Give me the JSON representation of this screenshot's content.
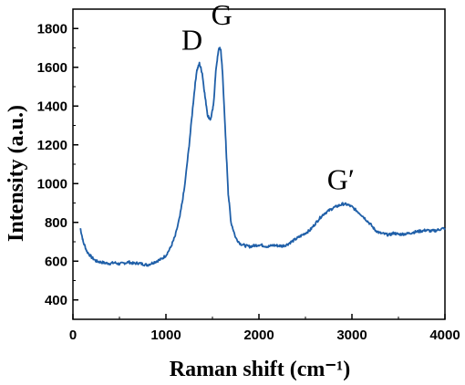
{
  "chart_data": {
    "type": "line",
    "title": "",
    "xlabel": "Raman shift (cm⁻¹)",
    "ylabel": "Intensity (a.u.)",
    "xlim": [
      0,
      4000
    ],
    "ylim": [
      300,
      1900
    ],
    "xticks": [
      0,
      1000,
      2000,
      3000,
      4000
    ],
    "yticks": [
      400,
      600,
      800,
      1000,
      1200,
      1400,
      1600,
      1800
    ],
    "grid": false,
    "legend": "none",
    "line_color": "#1f5fa8",
    "annotations": [
      {
        "text": "D",
        "x": 1280,
        "y": 1690
      },
      {
        "text": "G",
        "x": 1600,
        "y": 1820
      },
      {
        "text": "G′",
        "x": 2880,
        "y": 970
      }
    ],
    "series": [
      {
        "x": [
          80,
          110,
          150,
          200,
          250,
          300,
          350,
          400,
          450,
          500,
          550,
          600,
          650,
          700,
          750,
          800,
          850,
          900,
          950,
          1000,
          1050,
          1100,
          1150,
          1200,
          1250,
          1300,
          1330,
          1360,
          1390,
          1420,
          1450,
          1480,
          1510,
          1540,
          1570,
          1590,
          1610,
          1640,
          1670,
          1700,
          1750,
          1800,
          1850,
          1900,
          1950,
          2000,
          2050,
          2100,
          2150,
          2200,
          2250,
          2300,
          2350,
          2400,
          2450,
          2500,
          2550,
          2600,
          2650,
          2700,
          2750,
          2800,
          2850,
          2900,
          2950,
          3000,
          3050,
          3100,
          3150,
          3200,
          3250,
          3300,
          3350,
          3400,
          3450,
          3500,
          3550,
          3600,
          3650,
          3700,
          3750,
          3800,
          3850,
          3900,
          3950,
          4000
        ],
        "y": [
          770,
          700,
          650,
          620,
          600,
          595,
          590,
          588,
          592,
          585,
          590,
          595,
          588,
          590,
          585,
          580,
          590,
          600,
          610,
          630,
          670,
          730,
          830,
          980,
          1200,
          1450,
          1580,
          1620,
          1570,
          1450,
          1350,
          1330,
          1400,
          1600,
          1700,
          1690,
          1560,
          1250,
          950,
          800,
          720,
          690,
          680,
          675,
          680,
          685,
          680,
          675,
          682,
          680,
          678,
          685,
          700,
          715,
          730,
          745,
          760,
          790,
          820,
          845,
          860,
          875,
          885,
          895,
          892,
          880,
          860,
          840,
          815,
          790,
          760,
          745,
          740,
          735,
          745,
          738,
          740,
          742,
          748,
          752,
          756,
          760,
          755,
          758,
          765,
          770
        ]
      }
    ]
  }
}
